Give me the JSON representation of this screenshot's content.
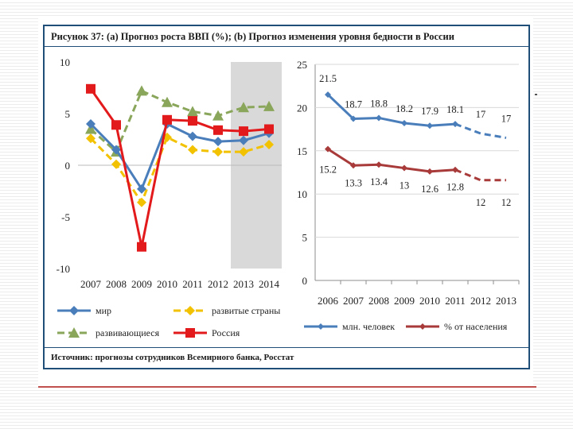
{
  "title": "Рисунок 37: (a) Прогноз роста ВВП (%); (b) Прогноз изменения уровня бедности в России",
  "source": "Источник: прогнозы сотрудников Всемирного банка, Росстат",
  "colors": {
    "blue": "#4a7ebb",
    "yellow": "#f2c200",
    "green": "#8aa65a",
    "red": "#e31a1c",
    "darkred": "#a83a3a",
    "forecast_bg": "#d9d9d9",
    "frame": "#1f4e79"
  },
  "chart_data": [
    {
      "type": "line",
      "name": "gdp_growth",
      "categories": [
        "2007",
        "2008",
        "2009",
        "2010",
        "2011",
        "2012",
        "2013",
        "2014"
      ],
      "ylim": [
        -10,
        10
      ],
      "yticks": [
        "10",
        "5",
        "0",
        "-5",
        "-10"
      ],
      "forecast_start": "2013",
      "series": [
        {
          "key": "world",
          "name": "мир",
          "color": "#4a7ebb",
          "dashed": false,
          "marker": "diamond",
          "values": [
            4.0,
            1.5,
            -2.3,
            4.0,
            2.8,
            2.3,
            2.4,
            3.1
          ]
        },
        {
          "key": "developed",
          "name": "развитые страны",
          "color": "#f2c200",
          "dashed": true,
          "marker": "diamond",
          "values": [
            2.6,
            0.1,
            -3.6,
            2.7,
            1.5,
            1.3,
            1.3,
            2.0
          ]
        },
        {
          "key": "developing",
          "name": "развивающиеся",
          "color": "#8aa65a",
          "dashed": true,
          "marker": "triangle",
          "values": [
            3.5,
            1.3,
            7.2,
            6.1,
            5.2,
            4.8,
            5.6,
            5.7
          ]
        },
        {
          "key": "russia",
          "name": "Россия",
          "color": "#e31a1c",
          "dashed": false,
          "marker": "square",
          "values": [
            7.4,
            3.9,
            -7.9,
            4.4,
            4.3,
            3.4,
            3.3,
            3.5
          ]
        }
      ]
    },
    {
      "type": "line",
      "name": "poverty",
      "categories": [
        "2006",
        "2007",
        "2008",
        "2009",
        "2010",
        "2011",
        "2012",
        "2013"
      ],
      "ylim": [
        0,
        25
      ],
      "yticks": [
        "25",
        "20",
        "15",
        "10",
        "5",
        "0"
      ],
      "forecast_from_index": 5,
      "series": [
        {
          "key": "millions",
          "name": "млн. человек",
          "color": "#4a7ebb",
          "values": [
            21.5,
            18.7,
            18.8,
            18.2,
            17.9,
            18.1,
            17,
            16.5
          ],
          "labels": [
            "21.5",
            "18.7",
            "18.8",
            "18.2",
            "17.9",
            "18.1",
            "17",
            "17"
          ]
        },
        {
          "key": "percent",
          "name": "% от населения",
          "color": "#a83a3a",
          "values": [
            15.2,
            13.3,
            13.4,
            13,
            12.6,
            12.8,
            11.6,
            11.6
          ],
          "labels": [
            "15.2",
            "13.3",
            "13.4",
            "13",
            "12.6",
            "12.8",
            "12",
            "12"
          ]
        }
      ]
    }
  ]
}
